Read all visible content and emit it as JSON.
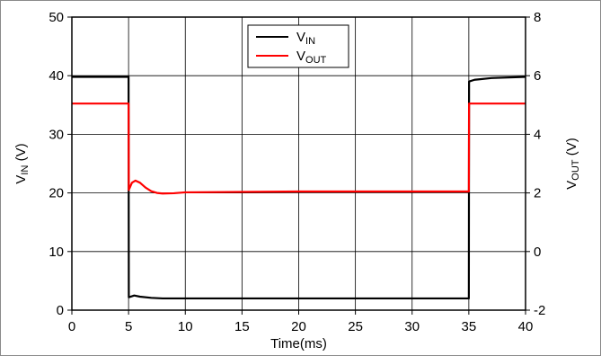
{
  "chart_data": {
    "type": "line",
    "title": "",
    "xlabel": "Time(ms)",
    "ylabel_left": {
      "main": "V",
      "sub": "IN",
      "unit": " (V)"
    },
    "ylabel_right": {
      "main": "V",
      "sub": "OUT",
      "unit": " (V)"
    },
    "xlim": [
      0,
      40
    ],
    "ylim_left": [
      0,
      50
    ],
    "ylim_right": [
      -2,
      8
    ],
    "x_ticks": [
      "0",
      "5",
      "10",
      "15",
      "20",
      "25",
      "30",
      "35",
      "40"
    ],
    "y_left_ticks": [
      "0",
      "10",
      "20",
      "30",
      "40",
      "50"
    ],
    "y_right_ticks": [
      "-2",
      "0",
      "2",
      "4",
      "6",
      "8"
    ],
    "grid": true,
    "legend_position": "top-center",
    "series": [
      {
        "name": {
          "main": "V",
          "sub": "IN"
        },
        "axis": "left",
        "color": "#000000",
        "x": [
          0,
          5.0,
          5.02,
          5.5,
          6.0,
          7.0,
          8.0,
          10.0,
          20.0,
          30.0,
          34.9,
          35.0,
          35.02,
          35.5,
          36.0,
          37.0,
          40.0
        ],
        "y": [
          39.8,
          39.8,
          2.2,
          2.5,
          2.3,
          2.1,
          2.0,
          2.0,
          2.0,
          2.0,
          2.0,
          2.0,
          39.0,
          39.3,
          39.4,
          39.6,
          39.8
        ]
      },
      {
        "name": {
          "main": "V",
          "sub": "OUT"
        },
        "axis": "right",
        "color": "#ff0000",
        "x": [
          0,
          5.0,
          5.02,
          5.3,
          5.6,
          6.0,
          6.5,
          7.0,
          7.5,
          8.0,
          9.0,
          10.0,
          20.0,
          34.95,
          35.0,
          35.02,
          40.0
        ],
        "y": [
          5.05,
          5.05,
          2.1,
          2.35,
          2.42,
          2.35,
          2.18,
          2.06,
          2.0,
          1.98,
          1.99,
          2.02,
          2.05,
          2.05,
          2.05,
          5.05,
          5.05
        ]
      }
    ]
  }
}
